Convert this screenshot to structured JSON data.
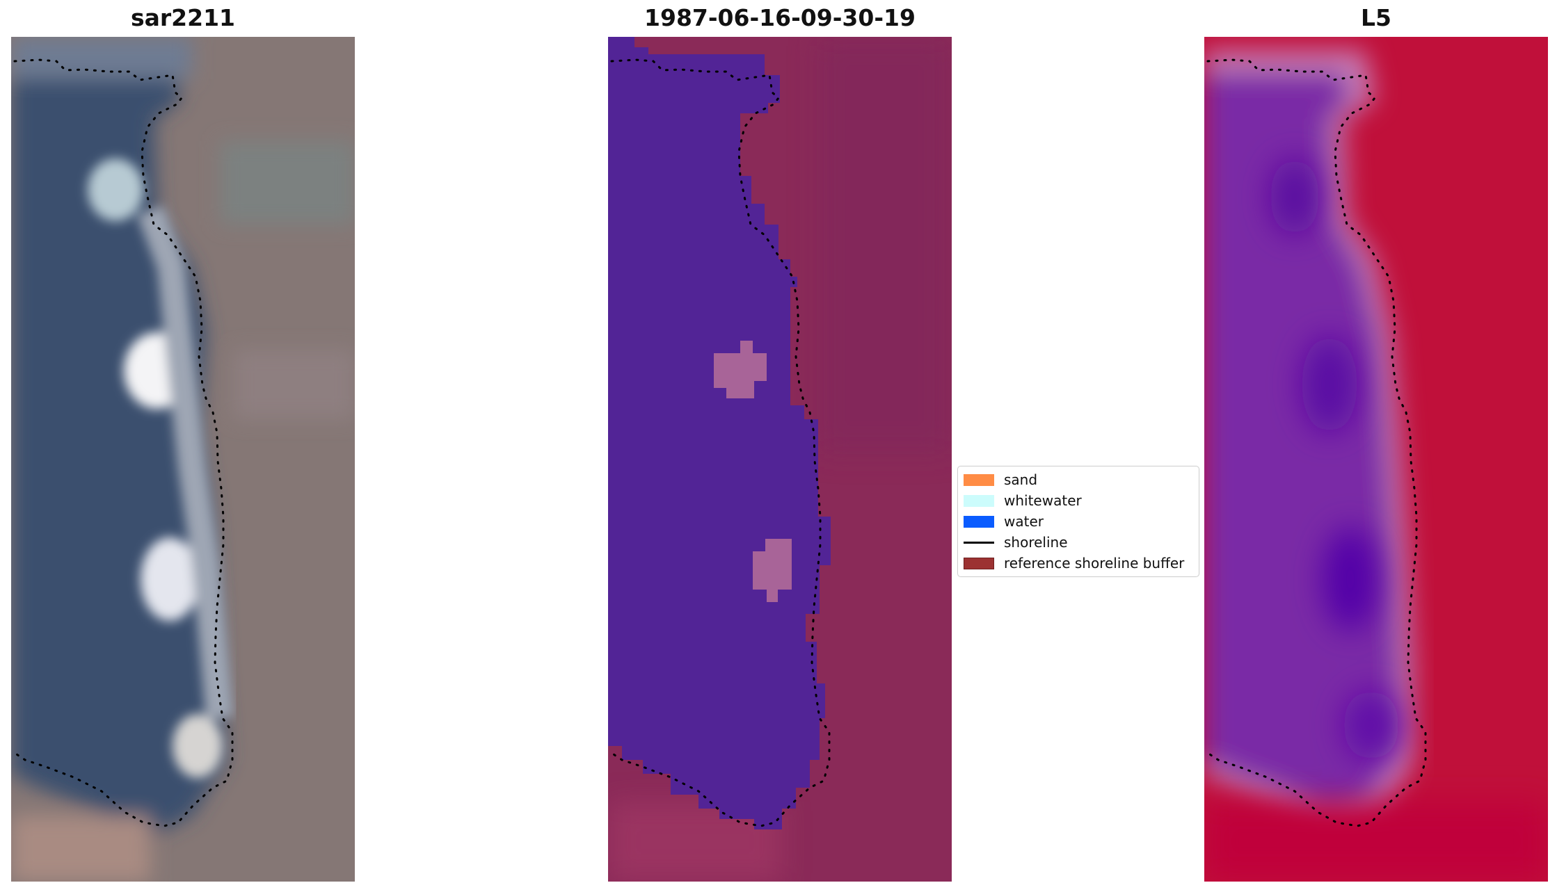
{
  "panels": [
    {
      "title": "sar2211"
    },
    {
      "title": "1987-06-16-09-30-19"
    },
    {
      "title": "L5"
    }
  ],
  "legend": {
    "items": [
      {
        "label": "sand",
        "color": "#ff8c45",
        "kind": "patch"
      },
      {
        "label": "whitewater",
        "color": "#ccfcfc",
        "kind": "patch"
      },
      {
        "label": "water",
        "color": "#0a5cff",
        "kind": "patch"
      },
      {
        "label": "shoreline",
        "color": "#000000",
        "kind": "line"
      },
      {
        "label": "reference shoreline buffer",
        "color": "#9c3232",
        "kind": "patch"
      }
    ]
  },
  "colors": {
    "rgb_water": "#3a4f6e",
    "rgb_land": "#857775",
    "class_water": "#522496",
    "class_land": "#8a2a58",
    "class_whitewater": "#a86498",
    "mndwi_water": "#7a2aa6",
    "mndwi_land": "#c0103a"
  }
}
